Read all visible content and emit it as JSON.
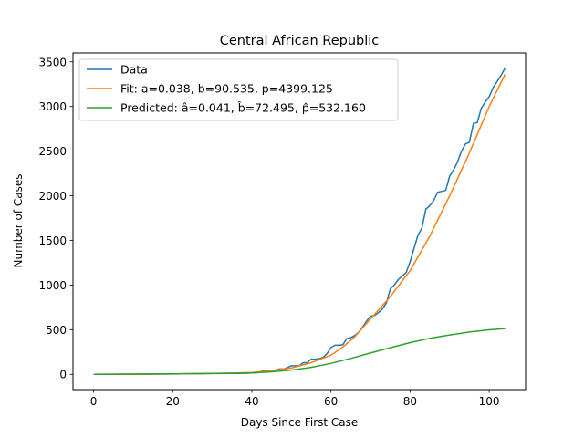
{
  "chart_data": {
    "type": "line",
    "title": "Central African Republic",
    "xlabel": "Days Since First Case",
    "ylabel": "Number of Cases",
    "xlim": [
      -5.2,
      109.2
    ],
    "ylim": [
      -171.4,
      3600
    ],
    "xticks": [
      0,
      20,
      40,
      60,
      80,
      100
    ],
    "yticks": [
      0,
      500,
      1000,
      1500,
      2000,
      2500,
      3000,
      3500
    ],
    "grid": false,
    "legend_position": "upper left",
    "series": [
      {
        "name": "Data",
        "color": "#1f77b4",
        "x": [
          0,
          10,
          20,
          30,
          38,
          40,
          41,
          42,
          43,
          44,
          45,
          46,
          47,
          48,
          49,
          50,
          51,
          52,
          53,
          54,
          55,
          56,
          57,
          58,
          59,
          60,
          61,
          62,
          63,
          64,
          65,
          66,
          67,
          68,
          69,
          70,
          71,
          72,
          73,
          74,
          75,
          76,
          77,
          78,
          79,
          80,
          81,
          82,
          83,
          84,
          85,
          86,
          87,
          88,
          89,
          90,
          91,
          92,
          93,
          94,
          95,
          96,
          97,
          98,
          99,
          100,
          101,
          102,
          103,
          104
        ],
        "y": [
          0,
          1,
          3,
          8,
          12,
          15,
          18,
          22,
          45,
          45,
          45,
          45,
          60,
          60,
          75,
          95,
          95,
          95,
          130,
          130,
          170,
          170,
          175,
          190,
          230,
          300,
          325,
          325,
          330,
          400,
          410,
          435,
          470,
          530,
          595,
          650,
          660,
          690,
          730,
          800,
          955,
          1000,
          1060,
          1100,
          1140,
          1260,
          1410,
          1560,
          1640,
          1850,
          1890,
          1950,
          2040,
          2050,
          2060,
          2220,
          2290,
          2380,
          2500,
          2580,
          2600,
          2810,
          2820,
          2980,
          3050,
          3110,
          3210,
          3280,
          3350,
          3430
        ]
      },
      {
        "name": "Fit: a=0.038, b=90.535, p=4399.125",
        "color": "#ff7f0e",
        "x": [
          0,
          5,
          10,
          15,
          20,
          25,
          30,
          35,
          40,
          45,
          50,
          55,
          60,
          63,
          66,
          70,
          75,
          80,
          85,
          90,
          95,
          100,
          104
        ],
        "y": [
          0,
          0,
          1,
          2,
          4,
          6,
          9,
          14,
          20,
          40,
          70,
          130,
          215,
          305,
          420,
          620,
          870,
          1160,
          1550,
          2000,
          2480,
          3000,
          3360
        ]
      },
      {
        "name": "Predicted: â=0.041, b̂=72.495, p̂=532.160",
        "color": "#2ca02c",
        "x": [
          0,
          10,
          20,
          30,
          35,
          40,
          45,
          50,
          55,
          60,
          65,
          70,
          75,
          80,
          85,
          90,
          95,
          100,
          104
        ],
        "y": [
          0,
          2,
          5,
          9,
          12,
          16,
          28,
          47,
          78,
          122,
          178,
          238,
          298,
          355,
          403,
          441,
          474,
          498,
          512
        ]
      }
    ]
  }
}
